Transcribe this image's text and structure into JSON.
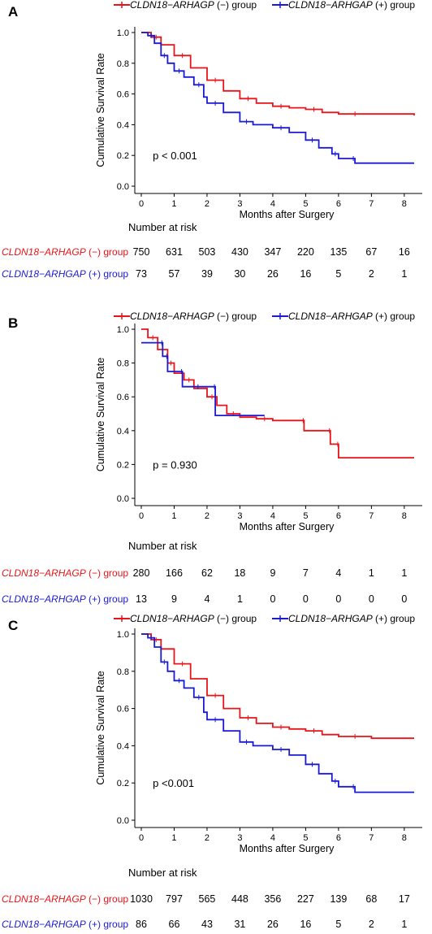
{
  "colors": {
    "neg": "#e8141a",
    "pos": "#1a1ad6"
  },
  "chart_data": [
    {
      "type": "line",
      "panel_label": "A",
      "legend": {
        "placement": "top",
        "items": [
          {
            "gene": "CLDN18−ARHAGP",
            "suffix": " (−) group",
            "color": "neg"
          },
          {
            "gene": "CLDN18−ARHGAP",
            "suffix": " (+) group",
            "color": "pos"
          }
        ]
      },
      "xlabel": "Months after Surgery",
      "ylabel": "Cumulative Survival Rate",
      "xlim": [
        0,
        8.3
      ],
      "ylim": [
        0,
        1.0
      ],
      "xticks": [
        "0",
        "1",
        "2",
        "3",
        "4",
        "5",
        "6",
        "7",
        "8"
      ],
      "yticks": [
        "0.0",
        "0.2",
        "0.4",
        "0.6",
        "0.8",
        "1.0"
      ],
      "annotation": "p < 0.001",
      "series": [
        {
          "color": "neg",
          "x": [
            0,
            0.3,
            0.6,
            1.0,
            1.5,
            2.0,
            2.5,
            3.0,
            3.5,
            4.0,
            4.5,
            5.0,
            5.5,
            6.0,
            7.0,
            8.3
          ],
          "y": [
            1.0,
            0.97,
            0.92,
            0.85,
            0.77,
            0.69,
            0.62,
            0.57,
            0.54,
            0.52,
            0.51,
            0.5,
            0.48,
            0.47,
            0.47,
            0.46
          ]
        },
        {
          "color": "pos",
          "x": [
            0,
            0.2,
            0.4,
            0.6,
            0.8,
            1.0,
            1.3,
            1.6,
            1.9,
            2.0,
            2.5,
            3.0,
            3.4,
            4.0,
            4.5,
            5.0,
            5.4,
            5.8,
            6.0,
            6.4,
            6.5,
            8.3
          ],
          "y": [
            1.0,
            0.98,
            0.93,
            0.85,
            0.8,
            0.75,
            0.71,
            0.66,
            0.58,
            0.54,
            0.48,
            0.42,
            0.4,
            0.38,
            0.35,
            0.3,
            0.25,
            0.21,
            0.18,
            0.18,
            0.15,
            0.15
          ]
        }
      ],
      "risk_table": {
        "title": "Number at risk",
        "rows": [
          {
            "gene": "CLDN18−ARHAGP",
            "suffix": " (−) group",
            "color": "neg",
            "values": [
              "750",
              "631",
              "503",
              "430",
              "347",
              "220",
              "135",
              "67",
              "16"
            ]
          },
          {
            "gene": "CLDN18−ARHGAP",
            "suffix": " (+) group",
            "color": "pos",
            "values": [
              "73",
              "57",
              "39",
              "30",
              "26",
              "16",
              "5",
              "2",
              "1"
            ]
          }
        ]
      }
    },
    {
      "type": "line",
      "panel_label": "B",
      "legend": {
        "placement": "top",
        "items": [
          {
            "gene": "CLDN18−ARHAGP",
            "suffix": " (−) group",
            "color": "neg"
          },
          {
            "gene": "CLDN18−ARHGAP",
            "suffix": " (+) group",
            "color": "pos"
          }
        ]
      },
      "xlabel": "Months after Surgery",
      "ylabel": "Cumulative Survival Rate",
      "xlim": [
        0,
        8.3
      ],
      "ylim": [
        0,
        1.0
      ],
      "xticks": [
        "0",
        "1",
        "2",
        "3",
        "4",
        "5",
        "6",
        "7",
        "8"
      ],
      "yticks": [
        "0.0",
        "0.2",
        "0.4",
        "0.6",
        "0.8",
        "1.0"
      ],
      "annotation": "p = 0.930",
      "series": [
        {
          "color": "neg",
          "x": [
            0,
            0.2,
            0.5,
            0.8,
            1.0,
            1.3,
            1.6,
            2.0,
            2.3,
            2.6,
            3.0,
            3.5,
            4.0,
            4.9,
            4.95,
            5.7,
            5.75,
            5.95,
            6.0,
            8.3
          ],
          "y": [
            1.0,
            0.95,
            0.88,
            0.8,
            0.74,
            0.7,
            0.65,
            0.6,
            0.55,
            0.5,
            0.48,
            0.47,
            0.46,
            0.46,
            0.4,
            0.4,
            0.32,
            0.32,
            0.24,
            0.24
          ]
        },
        {
          "color": "pos",
          "x": [
            0,
            0.6,
            0.65,
            0.75,
            0.8,
            1.2,
            1.25,
            1.7,
            1.75,
            2.2,
            2.25,
            3.75
          ],
          "y": [
            0.92,
            0.92,
            0.84,
            0.84,
            0.75,
            0.75,
            0.66,
            0.66,
            0.66,
            0.66,
            0.49,
            0.49
          ]
        }
      ],
      "risk_table": {
        "title": "Number at risk",
        "rows": [
          {
            "gene": "CLDN18−ARHAGP",
            "suffix": " (−) group",
            "color": "neg",
            "values": [
              "280",
              "166",
              "62",
              "18",
              "9",
              "7",
              "4",
              "1",
              "1"
            ]
          },
          {
            "gene": "CLDN18−ARHGAP",
            "suffix": " (+) group",
            "color": "pos",
            "values": [
              "13",
              "9",
              "4",
              "1",
              "0",
              "0",
              "0",
              "0",
              "0"
            ]
          }
        ]
      }
    },
    {
      "type": "line",
      "panel_label": "C",
      "legend": {
        "placement": "top",
        "items": [
          {
            "gene": "CLDN18−ARHAGP",
            "suffix": " (−) group",
            "color": "neg"
          },
          {
            "gene": "CLDN18−ARHGAP",
            "suffix": " (+) group",
            "color": "pos"
          }
        ]
      },
      "xlabel": "Months after Surgery",
      "ylabel": "Cumulative Survival Rate",
      "xlim": [
        0,
        8.3
      ],
      "ylim": [
        0,
        1.0
      ],
      "xticks": [
        "0",
        "1",
        "2",
        "3",
        "4",
        "5",
        "6",
        "7",
        "8"
      ],
      "yticks": [
        "0.0",
        "0.2",
        "0.4",
        "0.6",
        "0.8",
        "1.0"
      ],
      "annotation": "p <0.001",
      "series": [
        {
          "color": "neg",
          "x": [
            0,
            0.3,
            0.6,
            1.0,
            1.5,
            2.0,
            2.5,
            3.0,
            3.5,
            4.0,
            4.5,
            5.0,
            5.5,
            6.0,
            7.0,
            8.3
          ],
          "y": [
            1.0,
            0.97,
            0.92,
            0.84,
            0.76,
            0.67,
            0.6,
            0.55,
            0.52,
            0.5,
            0.49,
            0.48,
            0.46,
            0.45,
            0.44,
            0.44
          ]
        },
        {
          "color": "pos",
          "x": [
            0,
            0.2,
            0.4,
            0.6,
            0.8,
            1.0,
            1.3,
            1.6,
            1.9,
            2.0,
            2.5,
            3.0,
            3.4,
            4.0,
            4.5,
            5.0,
            5.4,
            5.8,
            6.0,
            6.4,
            6.5,
            8.3
          ],
          "y": [
            1.0,
            0.98,
            0.93,
            0.85,
            0.8,
            0.75,
            0.71,
            0.66,
            0.58,
            0.54,
            0.48,
            0.42,
            0.4,
            0.38,
            0.35,
            0.3,
            0.25,
            0.21,
            0.18,
            0.18,
            0.15,
            0.15
          ]
        }
      ],
      "risk_table": {
        "title": "Number at risk",
        "rows": [
          {
            "gene": "CLDN18−ARHAGP",
            "suffix": " (−) group",
            "color": "neg",
            "values": [
              "1030",
              "797",
              "565",
              "448",
              "356",
              "227",
              "139",
              "68",
              "17"
            ]
          },
          {
            "gene": "CLDN18−ARHGAP",
            "suffix": " (+) group",
            "color": "pos",
            "values": [
              "86",
              "66",
              "43",
              "31",
              "26",
              "16",
              "5",
              "2",
              "1"
            ]
          }
        ]
      }
    }
  ]
}
